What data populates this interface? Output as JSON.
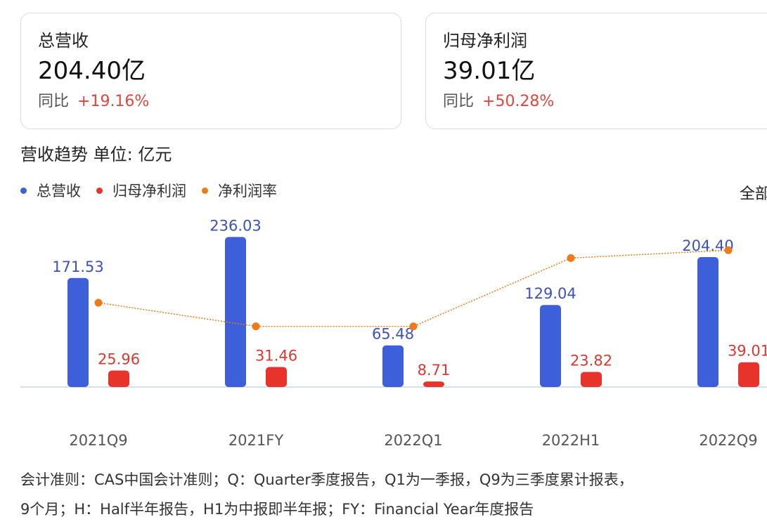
{
  "cards": {
    "revenue": {
      "title": "总营收",
      "value": "204.40亿",
      "yoy_label": "同比",
      "yoy_value": "+19.16%"
    },
    "net_profit": {
      "title": "归母净利润",
      "value": "39.01亿",
      "yoy_label": "同比",
      "yoy_value": "+50.28%"
    }
  },
  "section": {
    "title": "营收趋势  单位: 亿元",
    "range_label": "全部"
  },
  "legend": [
    {
      "label": "总营收",
      "color": "#3d5fd9"
    },
    {
      "label": "归母净利润",
      "color": "#e8332c"
    },
    {
      "label": "净利润率",
      "color": "#f07a1a"
    }
  ],
  "chart_data": {
    "type": "bar",
    "categories": [
      "2021Q9",
      "2021FY",
      "2022Q1",
      "2022H1",
      "2022Q9"
    ],
    "series": [
      {
        "name": "总营收",
        "type": "bar",
        "color": "#3d5fd9",
        "values": [
          171.53,
          236.03,
          65.48,
          129.04,
          204.4
        ],
        "labels": [
          "171.53",
          "236.03",
          "65.48",
          "129.04",
          "204.40"
        ]
      },
      {
        "name": "归母净利润",
        "type": "bar",
        "color": "#e8332c",
        "values": [
          25.96,
          31.46,
          8.71,
          23.82,
          39.01
        ],
        "labels": [
          "25.96",
          "31.46",
          "8.71",
          "23.82",
          "39.01"
        ]
      },
      {
        "name": "净利润率",
        "type": "line",
        "color": "#f07a1a",
        "values": [
          15.1,
          13.3,
          13.3,
          18.5,
          19.1
        ]
      }
    ]
  },
  "footnote": [
    "会计准则：CAS中国会计准则；Q：Quarter季度报告，Q1为一季报，Q9为三季度累计报表，",
    "9个月；H：Half半年报告，H1为中报即半年报；FY：Financial Year年度报告"
  ]
}
